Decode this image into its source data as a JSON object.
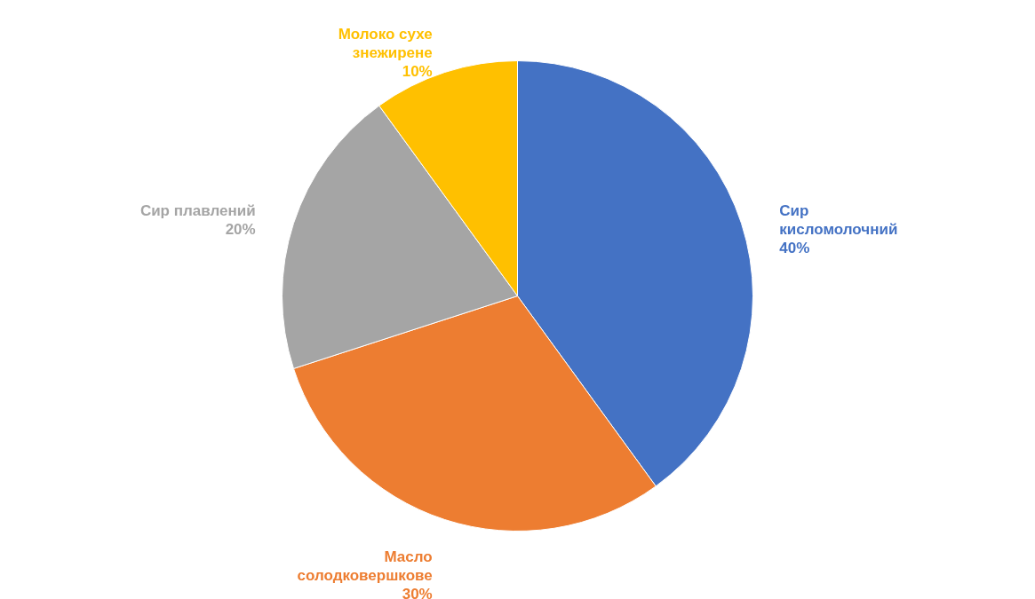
{
  "chart_data": {
    "type": "pie",
    "categories": [
      "Сир кисломолочний",
      "Масло солодковершкове",
      "Сир плавлений",
      "Молоко сухе знежирене"
    ],
    "values": [
      40,
      30,
      20,
      10
    ],
    "value_labels": [
      "40%",
      "30%",
      "20%",
      "10%"
    ],
    "colors": [
      "#4472c4",
      "#ed7d31",
      "#a5a5a5",
      "#ffc000"
    ]
  }
}
